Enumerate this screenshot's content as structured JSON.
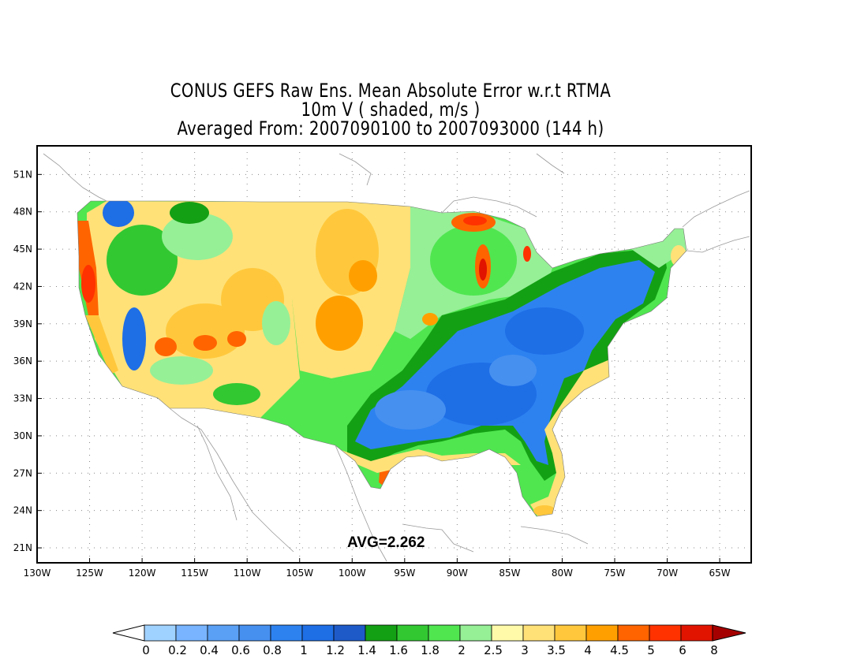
{
  "title": {
    "line1": "CONUS GEFS Raw Ens. Mean Absolute Error w.r.t RTMA",
    "line2": "10m V ( shaded, m/s )",
    "line3": "Averaged From: 2007090100 to 2007093000 (144 h)"
  },
  "map": {
    "projection": "latlon",
    "lon_range": [
      -130,
      -62
    ],
    "lat_range": [
      19.8,
      53.3
    ],
    "grid": "dotted",
    "lat_labels": [
      "51N",
      "48N",
      "45N",
      "42N",
      "39N",
      "36N",
      "33N",
      "30N",
      "27N",
      "24N",
      "21N"
    ],
    "lon_labels": [
      "130W",
      "125W",
      "120W",
      "115W",
      "110W",
      "105W",
      "100W",
      "95W",
      "90W",
      "85W",
      "80W",
      "75W",
      "70W",
      "65W"
    ],
    "avg_label": "AVG=2.262"
  },
  "colorbar": {
    "labels": [
      "0",
      "0.2",
      "0.4",
      "0.6",
      "0.8",
      "1",
      "1.2",
      "1.4",
      "1.6",
      "1.8",
      "2",
      "2.5",
      "3",
      "3.5",
      "4",
      "4.5",
      "5",
      "6",
      "8"
    ],
    "colors": [
      "#a0d2ff",
      "#78b4ff",
      "#5aa0f5",
      "#4690f0",
      "#2d82f0",
      "#1e6ee6",
      "#1e5ac8",
      "#14a014",
      "#32c832",
      "#50e650",
      "#96f096",
      "#fffaaa",
      "#ffe178",
      "#ffc83c",
      "#ffa000",
      "#ff6400",
      "#ff3200",
      "#e11400",
      "#a50000"
    ],
    "under_color": "#ffffff",
    "over_color": "#a50000"
  }
}
